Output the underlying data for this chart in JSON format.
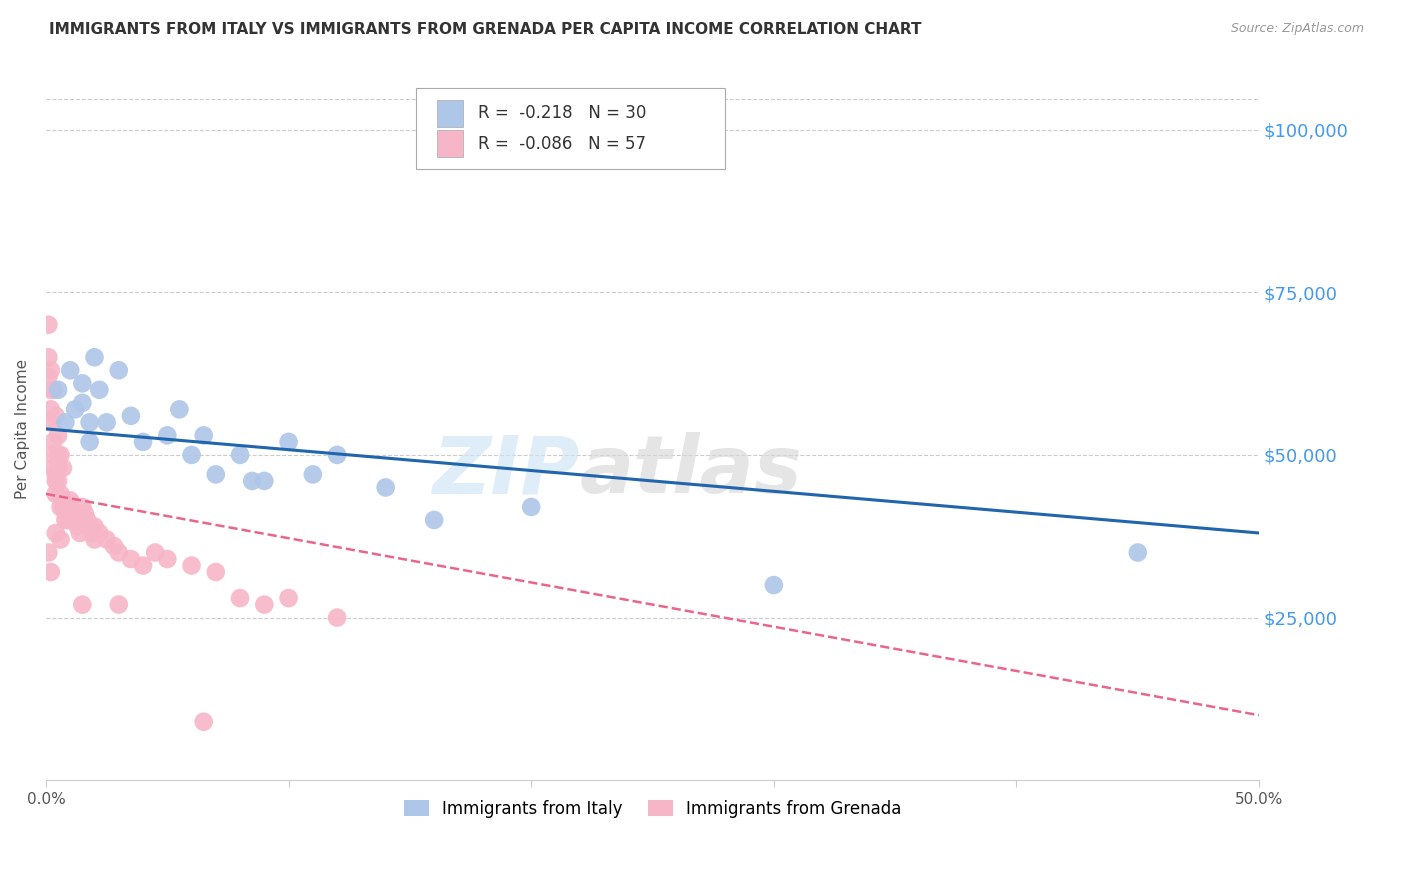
{
  "title": "IMMIGRANTS FROM ITALY VS IMMIGRANTS FROM GRENADA PER CAPITA INCOME CORRELATION CHART",
  "source": "Source: ZipAtlas.com",
  "ylabel": "Per Capita Income",
  "ytick_values": [
    25000,
    50000,
    75000,
    100000
  ],
  "ymin": 0,
  "ymax": 108000,
  "xmin": 0.0,
  "xmax": 0.5,
  "italy_color": "#aec6e8",
  "italy_line_color": "#2166ac",
  "grenada_color": "#f7b6c8",
  "grenada_line_color": "#e8668a",
  "italy_R": "-0.218",
  "italy_N": "30",
  "grenada_R": "-0.086",
  "grenada_N": "57",
  "watermark_zip": "ZIP",
  "watermark_atlas": "atlas",
  "italy_scatter_x": [
    0.005,
    0.008,
    0.01,
    0.012,
    0.015,
    0.015,
    0.018,
    0.018,
    0.02,
    0.022,
    0.025,
    0.03,
    0.035,
    0.04,
    0.05,
    0.055,
    0.06,
    0.065,
    0.07,
    0.08,
    0.085,
    0.09,
    0.1,
    0.11,
    0.12,
    0.14,
    0.16,
    0.2,
    0.3,
    0.45
  ],
  "italy_scatter_y": [
    60000,
    55000,
    63000,
    57000,
    61000,
    58000,
    55000,
    52000,
    65000,
    60000,
    55000,
    63000,
    56000,
    52000,
    53000,
    57000,
    50000,
    53000,
    47000,
    50000,
    46000,
    46000,
    52000,
    47000,
    50000,
    45000,
    40000,
    42000,
    30000,
    35000
  ],
  "grenada_scatter_x": [
    0.001,
    0.001,
    0.002,
    0.002,
    0.002,
    0.003,
    0.003,
    0.003,
    0.004,
    0.004,
    0.004,
    0.005,
    0.005,
    0.005,
    0.006,
    0.006,
    0.007,
    0.007,
    0.008,
    0.008,
    0.008,
    0.009,
    0.009,
    0.01,
    0.01,
    0.011,
    0.012,
    0.013,
    0.014,
    0.015,
    0.016,
    0.017,
    0.018,
    0.019,
    0.02,
    0.02,
    0.022,
    0.025,
    0.028,
    0.03,
    0.035,
    0.04,
    0.045,
    0.05,
    0.06,
    0.07,
    0.08,
    0.09,
    0.1,
    0.12,
    0.001,
    0.002,
    0.003,
    0.004,
    0.005,
    0.006,
    0.007
  ],
  "grenada_scatter_y": [
    65000,
    62000,
    60000,
    57000,
    55000,
    52000,
    50000,
    48000,
    47000,
    46000,
    44000,
    50000,
    48000,
    46000,
    44000,
    42000,
    43000,
    42000,
    41000,
    40000,
    42000,
    41000,
    40000,
    43000,
    42000,
    41000,
    40000,
    39000,
    38000,
    42000,
    41000,
    40000,
    39000,
    38000,
    37000,
    39000,
    38000,
    37000,
    36000,
    35000,
    34000,
    33000,
    35000,
    34000,
    33000,
    32000,
    28000,
    27000,
    28000,
    25000,
    70000,
    63000,
    60000,
    56000,
    53000,
    50000,
    48000
  ],
  "italy_trend_x": [
    0.0,
    0.5
  ],
  "italy_trend_y": [
    54000,
    38000
  ],
  "grenada_trend_x": [
    0.0,
    0.5
  ],
  "grenada_trend_y": [
    44000,
    10000
  ],
  "grenada_extra_x": [
    0.001,
    0.002,
    0.004,
    0.006,
    0.015,
    0.03,
    0.065
  ],
  "grenada_extra_y": [
    35000,
    32000,
    38000,
    37000,
    27000,
    27000,
    9000
  ]
}
